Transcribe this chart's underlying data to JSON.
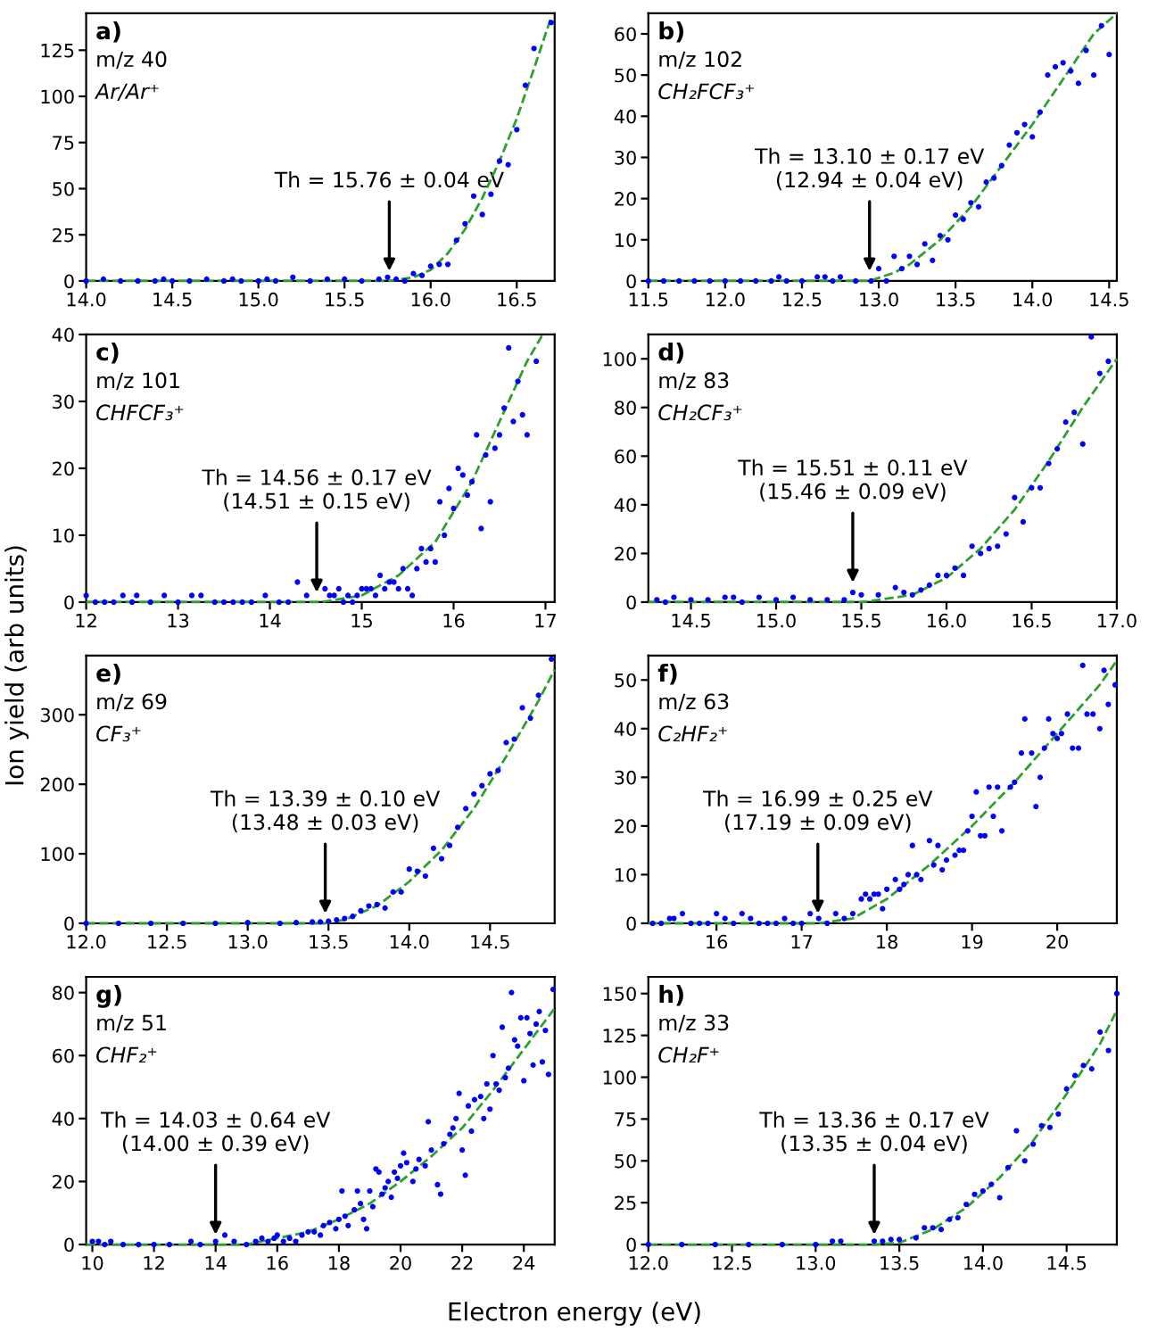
{
  "chart_data": [
    {
      "type": "scatter",
      "annotations": [
        "a)",
        "m/z 40",
        "Ar/Ar⁺",
        {
          "text": "Th = 15.76 ± 0.04 eV",
          "x": 15.76,
          "y": 0
        }
      ],
      "xlim": [
        14.0,
        16.72
      ],
      "xticks": [
        {
          "value": 14,
          "label": "14.0"
        },
        14.5,
        {
          "value": 15,
          "label": "15.0"
        },
        15.5,
        {
          "value": 16,
          "label": "16.0"
        },
        16.5
      ],
      "ylim": [
        0,
        145
      ],
      "yticks": [
        0,
        25,
        50,
        75,
        100,
        125
      ],
      "series": [
        {
          "type": "scatter",
          "color": "#0000ff",
          "marker": "circle",
          "x": [
            14.0,
            14.1,
            14.2,
            14.3,
            14.4,
            14.45,
            14.5,
            14.6,
            14.7,
            14.8,
            14.85,
            14.9,
            15.0,
            15.05,
            15.1,
            15.2,
            15.3,
            15.4,
            15.5,
            15.6,
            15.7,
            15.75,
            15.8,
            15.85,
            15.9,
            15.95,
            16.0,
            16.05,
            16.1,
            16.15,
            16.2,
            16.25,
            16.3,
            16.35,
            16.4,
            16.45,
            16.5,
            16.55,
            16.6,
            16.7
          ],
          "values": [
            0,
            1,
            0,
            0,
            0,
            1,
            0,
            0,
            1,
            0,
            1,
            0,
            0,
            1,
            0,
            2,
            0,
            1,
            1,
            0,
            1,
            2,
            1,
            0,
            4,
            3,
            8,
            9,
            9,
            22,
            31,
            46,
            36,
            47,
            65,
            63,
            82,
            106,
            126,
            140
          ]
        },
        {
          "type": "line",
          "color": "#2ca02c",
          "line_style": "dashed",
          "x": [
            14.0,
            15.76,
            15.9,
            16.0,
            16.1,
            16.2,
            16.3,
            16.4,
            16.5,
            16.6,
            16.7
          ],
          "values": [
            0,
            0,
            2,
            6,
            15,
            28,
            45,
            65,
            88,
            115,
            143
          ]
        }
      ]
    },
    {
      "type": "scatter",
      "annotations": [
        "b)",
        "m/z 102",
        "CH₂FCF₃⁺",
        {
          "text": "Th = 13.10 ± 0.17 eV\n(12.94 ± 0.04 eV)",
          "x": 12.94,
          "y": 0
        }
      ],
      "xlim": [
        11.5,
        14.55
      ],
      "xticks": [
        11.5,
        {
          "value": 12,
          "label": "12.0"
        },
        12.5,
        {
          "value": 13,
          "label": "13.0"
        },
        13.5,
        {
          "value": 14,
          "label": "14.0"
        },
        14.5
      ],
      "ylim": [
        0,
        65
      ],
      "yticks": [
        0,
        10,
        20,
        30,
        40,
        50,
        60
      ],
      "series": [
        {
          "type": "scatter",
          "color": "#0000ff",
          "marker": "circle",
          "x": [
            11.5,
            11.6,
            11.7,
            11.8,
            11.9,
            12.0,
            12.1,
            12.2,
            12.3,
            12.35,
            12.4,
            12.5,
            12.6,
            12.65,
            12.7,
            12.75,
            12.85,
            12.95,
            13.0,
            13.05,
            13.1,
            13.15,
            13.2,
            13.25,
            13.3,
            13.35,
            13.4,
            13.45,
            13.5,
            13.55,
            13.6,
            13.65,
            13.7,
            13.75,
            13.8,
            13.85,
            13.9,
            13.95,
            14.0,
            14.05,
            14.1,
            14.15,
            14.2,
            14.25,
            14.3,
            14.35,
            14.4,
            14.45,
            14.5
          ],
          "values": [
            0,
            0,
            0,
            0,
            0,
            0,
            0,
            0,
            0,
            1,
            0,
            0,
            1,
            1,
            0,
            1,
            0,
            0,
            3,
            0,
            6,
            3,
            6,
            4,
            9,
            5,
            11,
            10,
            16,
            15,
            19,
            18,
            24,
            25,
            28,
            33,
            36,
            38,
            35,
            41,
            50,
            52,
            53,
            51,
            48,
            56,
            50,
            62,
            55
          ]
        },
        {
          "type": "line",
          "color": "#2ca02c",
          "line_style": "dashed",
          "x": [
            11.5,
            12.94,
            13.1,
            13.2,
            13.4,
            13.6,
            13.8,
            14.0,
            14.2,
            14.4,
            14.55
          ],
          "values": [
            0,
            0,
            2,
            4,
            10,
            18,
            28,
            38,
            49,
            60,
            65
          ]
        }
      ]
    },
    {
      "type": "scatter",
      "annotations": [
        "c)",
        "m/z 101",
        "CHFCF₃⁺",
        {
          "text": "Th = 14.56 ± 0.17 eV\n(14.51 ± 0.15 eV)",
          "x": 14.51,
          "y": 0
        }
      ],
      "xlim": [
        12,
        17.1
      ],
      "xticks": [
        12,
        13,
        14,
        15,
        16,
        17
      ],
      "ylim": [
        0,
        40
      ],
      "yticks": [
        0,
        10,
        20,
        30,
        40
      ],
      "series": [
        {
          "type": "scatter",
          "color": "#0000ff",
          "marker": "circle",
          "x": [
            12.0,
            12.1,
            12.2,
            12.3,
            12.4,
            12.5,
            12.55,
            12.7,
            12.85,
            13.0,
            13.15,
            13.25,
            13.4,
            13.5,
            13.6,
            13.7,
            13.8,
            13.95,
            14.1,
            14.2,
            14.3,
            14.4,
            14.6,
            14.65,
            14.7,
            14.75,
            14.8,
            14.85,
            14.9,
            14.95,
            15.0,
            15.05,
            15.1,
            15.15,
            15.2,
            15.25,
            15.3,
            15.35,
            15.4,
            15.45,
            15.5,
            15.55,
            15.6,
            15.65,
            15.7,
            15.75,
            15.8,
            15.85,
            15.9,
            15.95,
            16.0,
            16.05,
            16.1,
            16.15,
            16.2,
            16.25,
            16.3,
            16.35,
            16.4,
            16.45,
            16.5,
            16.55,
            16.6,
            16.65,
            16.7,
            16.75,
            16.8,
            16.9
          ],
          "values": [
            1,
            0,
            0,
            0,
            1,
            0,
            1,
            0,
            1,
            0,
            1,
            1,
            0,
            0,
            0,
            0,
            0,
            1,
            0,
            0,
            3,
            1,
            2,
            1,
            1,
            2,
            0,
            1,
            0,
            1,
            2,
            2,
            2,
            1,
            4,
            2,
            3,
            3,
            2,
            5,
            2,
            1,
            5,
            8,
            6,
            8,
            6,
            15,
            10,
            17,
            14,
            20,
            19,
            16,
            18,
            25,
            11,
            22,
            15,
            23,
            25,
            29,
            38,
            27,
            33,
            28,
            25,
            36
          ]
        },
        {
          "type": "line",
          "color": "#2ca02c",
          "line_style": "dashed",
          "x": [
            12,
            14.56,
            15.0,
            15.4,
            15.8,
            16.2,
            16.5,
            16.8,
            16.97
          ],
          "values": [
            0,
            0,
            1,
            4,
            9,
            18,
            27,
            36,
            40
          ]
        }
      ]
    },
    {
      "type": "scatter",
      "annotations": [
        "d)",
        "m/z 83",
        "CH₂CF₃⁺",
        {
          "text": "Th = 15.51 ± 0.11 eV\n(15.46 ± 0.09 eV)",
          "x": 15.45,
          "y": 4
        }
      ],
      "xlim": [
        14.25,
        17.0
      ],
      "xticks": [
        14.5,
        {
          "value": 15,
          "label": "15.0"
        },
        15.5,
        {
          "value": 16,
          "label": "16.0"
        },
        16.5,
        {
          "value": 17,
          "label": "17.0"
        }
      ],
      "ylim": [
        0,
        110
      ],
      "yticks": [
        0,
        20,
        40,
        60,
        80,
        100
      ],
      "series": [
        {
          "type": "scatter",
          "color": "#0000ff",
          "marker": "circle",
          "x": [
            14.3,
            14.35,
            14.4,
            14.5,
            14.6,
            14.7,
            14.75,
            14.8,
            14.9,
            15.0,
            15.1,
            15.2,
            15.3,
            15.4,
            15.45,
            15.5,
            15.6,
            15.7,
            15.75,
            15.8,
            15.85,
            15.9,
            15.95,
            16.0,
            16.05,
            16.1,
            16.15,
            16.2,
            16.25,
            16.3,
            16.35,
            16.4,
            16.45,
            16.5,
            16.55,
            16.6,
            16.65,
            16.7,
            16.75,
            16.8,
            16.85,
            16.9,
            16.95
          ],
          "values": [
            1,
            0,
            2,
            1,
            1,
            2,
            2,
            0,
            2,
            1,
            2,
            1,
            1,
            1,
            4,
            3,
            3,
            6,
            4,
            3,
            5,
            7,
            11,
            11,
            14,
            11,
            23,
            20,
            22,
            23,
            28,
            43,
            33,
            47,
            47,
            57,
            63,
            74,
            78,
            65,
            109,
            94,
            99
          ]
        },
        {
          "type": "line",
          "color": "#2ca02c",
          "line_style": "dashed",
          "x": [
            14.25,
            15.51,
            15.8,
            16.0,
            16.2,
            16.4,
            16.6,
            16.8,
            17.0
          ],
          "values": [
            0,
            0,
            3,
            10,
            22,
            38,
            58,
            80,
            100
          ]
        }
      ]
    },
    {
      "type": "scatter",
      "annotations": [
        "e)",
        "m/z 69",
        "CF₃⁺",
        {
          "text": "Th = 13.39 ± 0.10 eV\n(13.48 ± 0.03 eV)",
          "x": 13.48,
          "y": 0
        }
      ],
      "xlim": [
        12.0,
        14.9
      ],
      "xticks": [
        {
          "value": 12,
          "label": "12.0"
        },
        12.5,
        {
          "value": 13,
          "label": "13.0"
        },
        13.5,
        {
          "value": 14,
          "label": "14.0"
        },
        14.5
      ],
      "ylim": [
        0,
        385
      ],
      "yticks": [
        0,
        100,
        200,
        300
      ],
      "series": [
        {
          "type": "scatter",
          "color": "#0000ff",
          "marker": "circle",
          "x": [
            12.0,
            12.2,
            12.4,
            12.6,
            12.8,
            13.0,
            13.2,
            13.3,
            13.4,
            13.45,
            13.5,
            13.55,
            13.6,
            13.65,
            13.7,
            13.75,
            13.8,
            13.85,
            13.9,
            13.95,
            14.0,
            14.05,
            14.1,
            14.15,
            14.2,
            14.25,
            14.3,
            14.35,
            14.4,
            14.45,
            14.5,
            14.55,
            14.6,
            14.65,
            14.7,
            14.75,
            14.8,
            14.88
          ],
          "values": [
            0,
            0,
            0,
            0,
            0,
            1,
            0,
            1,
            2,
            2,
            3,
            5,
            7,
            10,
            18,
            25,
            27,
            22,
            45,
            45,
            78,
            75,
            68,
            108,
            93,
            112,
            138,
            165,
            186,
            198,
            215,
            220,
            260,
            265,
            310,
            295,
            328,
            380
          ]
        },
        {
          "type": "line",
          "color": "#2ca02c",
          "line_style": "dashed",
          "x": [
            12.0,
            13.48,
            13.6,
            13.8,
            14.0,
            14.2,
            14.4,
            14.6,
            14.8,
            14.9
          ],
          "values": [
            0,
            0,
            5,
            25,
            60,
            105,
            165,
            240,
            320,
            365
          ]
        }
      ]
    },
    {
      "type": "scatter",
      "annotations": [
        "f)",
        "m/z 63",
        "C₂HF₂⁺",
        {
          "text": "Th = 16.99 ± 0.25 eV\n(17.19 ± 0.09 eV)",
          "x": 17.19,
          "y": 0
        }
      ],
      "xlim": [
        15.2,
        20.7
      ],
      "xticks": [
        16,
        17,
        18,
        19,
        20
      ],
      "ylim": [
        0,
        55
      ],
      "yticks": [
        0,
        10,
        20,
        30,
        40,
        50
      ],
      "series": [
        {
          "type": "scatter",
          "color": "#0000ff",
          "marker": "circle",
          "x": [
            15.25,
            15.35,
            15.45,
            15.5,
            15.6,
            15.7,
            15.8,
            15.9,
            16.0,
            16.1,
            16.2,
            16.3,
            16.4,
            16.5,
            16.6,
            16.7,
            16.8,
            16.9,
            17.0,
            17.1,
            17.2,
            17.3,
            17.4,
            17.5,
            17.6,
            17.7,
            17.75,
            17.8,
            17.85,
            17.9,
            17.95,
            18.0,
            18.1,
            18.15,
            18.2,
            18.25,
            18.3,
            18.35,
            18.4,
            18.5,
            18.55,
            18.6,
            18.65,
            18.7,
            18.8,
            18.85,
            18.9,
            18.95,
            19.0,
            19.05,
            19.1,
            19.15,
            19.2,
            19.25,
            19.3,
            19.35,
            19.45,
            19.5,
            19.58,
            19.62,
            19.7,
            19.75,
            19.8,
            19.85,
            19.9,
            19.95,
            20.0,
            20.05,
            20.12,
            20.18,
            20.25,
            20.3,
            20.35,
            20.42,
            20.5,
            20.55,
            20.6,
            20.68
          ],
          "values": [
            0,
            0,
            1,
            1,
            2,
            0,
            0,
            0,
            2,
            1,
            0,
            2,
            1,
            0,
            0,
            0,
            1,
            0,
            0,
            2,
            1,
            0,
            2,
            1,
            2,
            5,
            6,
            5,
            6,
            6,
            3,
            7,
            9,
            7,
            8,
            10,
            16,
            10,
            9,
            17,
            12,
            16,
            11,
            13,
            14,
            15,
            15,
            19,
            22,
            27,
            18,
            18,
            28,
            22,
            28,
            19,
            28,
            29,
            35,
            42,
            35,
            24,
            30,
            36,
            42,
            39,
            38,
            39,
            43,
            36,
            36,
            53,
            43,
            43,
            40,
            52,
            45,
            49
          ]
        },
        {
          "type": "line",
          "color": "#2ca02c",
          "line_style": "dashed",
          "x": [
            15.2,
            17.19,
            17.6,
            18.0,
            18.5,
            19.0,
            19.5,
            20.0,
            20.5,
            20.7
          ],
          "values": [
            0,
            0,
            1,
            5,
            12,
            20,
            29,
            39,
            49,
            54
          ]
        }
      ]
    },
    {
      "type": "scatter",
      "xlabel": "Electron energy (eV)",
      "annotations": [
        "g)",
        "m/z 51",
        "CHF₂⁺",
        {
          "text": "Th = 14.03 ± 0.64 eV\n(14.00 ± 0.39 eV)",
          "x": 14.0,
          "y": 0
        }
      ],
      "xlim": [
        9.8,
        25
      ],
      "xticks": [
        10,
        12,
        14,
        16,
        18,
        20,
        22,
        24
      ],
      "ylim": [
        0,
        85
      ],
      "yticks": [
        0,
        20,
        40,
        60,
        80
      ],
      "series": [
        {
          "type": "scatter",
          "color": "#0000ff",
          "marker": "circle",
          "x": [
            10.0,
            10.2,
            10.4,
            10.6,
            11.0,
            11.5,
            12.0,
            12.5,
            13.2,
            13.5,
            14.0,
            14.3,
            14.6,
            15.0,
            15.3,
            15.5,
            15.7,
            15.9,
            16.0,
            16.2,
            16.4,
            16.6,
            16.8,
            17.0,
            17.2,
            17.4,
            17.5,
            17.7,
            17.9,
            18.0,
            18.1,
            18.2,
            18.3,
            18.5,
            18.6,
            18.7,
            18.8,
            18.9,
            19.0,
            19.1,
            19.2,
            19.3,
            19.4,
            19.5,
            19.6,
            19.7,
            19.8,
            19.9,
            20.0,
            20.1,
            20.2,
            20.4,
            20.5,
            20.6,
            20.8,
            20.9,
            21.0,
            21.2,
            21.3,
            21.4,
            21.6,
            21.7,
            21.8,
            21.9,
            22.0,
            22.1,
            22.2,
            22.3,
            22.4,
            22.6,
            22.7,
            22.8,
            22.9,
            23.0,
            23.1,
            23.2,
            23.3,
            23.4,
            23.5,
            23.6,
            23.7,
            23.8,
            23.9,
            24.0,
            24.1,
            24.2,
            24.3,
            24.4,
            24.5,
            24.6,
            24.7,
            24.8,
            24.95
          ],
          "values": [
            1,
            1,
            0,
            1,
            0,
            0,
            0,
            0,
            1,
            0,
            1,
            3,
            1,
            0,
            1,
            2,
            1,
            2,
            3,
            1,
            2,
            1,
            3,
            4,
            4,
            3,
            6,
            7,
            5,
            8,
            17,
            9,
            6,
            11,
            17,
            13,
            8,
            5,
            17,
            12,
            24,
            23,
            16,
            18,
            20,
            15,
            23,
            21,
            25,
            29,
            26,
            20,
            24,
            27,
            25,
            39,
            30,
            19,
            16,
            32,
            35,
            37,
            40,
            48,
            30,
            22,
            44,
            36,
            46,
            47,
            40,
            51,
            43,
            60,
            51,
            49,
            69,
            53,
            56,
            80,
            65,
            63,
            72,
            52,
            72,
            67,
            57,
            70,
            74,
            58,
            68,
            54,
            81
          ]
        },
        {
          "type": "line",
          "color": "#2ca02c",
          "line_style": "dashed",
          "x": [
            9.8,
            14.0,
            15.0,
            16.0,
            17.0,
            18.0,
            19.0,
            20.0,
            21.0,
            22.0,
            23.0,
            24.0,
            25.0
          ],
          "values": [
            0,
            0,
            0,
            2,
            4,
            8,
            13,
            20,
            28,
            37,
            49,
            62,
            75
          ]
        }
      ]
    },
    {
      "type": "scatter",
      "ylabel": "Ion yield (arb units)",
      "annotations": [
        "h)",
        "m/z 33",
        "CH₂F⁺",
        {
          "text": "Th = 13.36 ± 0.17 eV\n(13.35 ± 0.04 eV)",
          "x": 13.35,
          "y": 0
        }
      ],
      "xlim": [
        12.0,
        14.8
      ],
      "xticks": [
        {
          "value": 12,
          "label": "12.0"
        },
        12.5,
        {
          "value": 13,
          "label": "13.0"
        },
        13.5,
        {
          "value": 14,
          "label": "14.0"
        },
        14.5
      ],
      "ylim": [
        0,
        160
      ],
      "yticks": [
        0,
        25,
        50,
        75,
        100,
        125,
        150
      ],
      "series": [
        {
          "type": "scatter",
          "color": "#0000ff",
          "marker": "circle",
          "x": [
            12.0,
            12.2,
            12.4,
            12.6,
            12.8,
            13.0,
            13.1,
            13.15,
            13.35,
            13.4,
            13.45,
            13.5,
            13.6,
            13.65,
            13.7,
            13.75,
            13.8,
            13.85,
            13.9,
            13.95,
            14.0,
            14.05,
            14.1,
            14.15,
            14.2,
            14.25,
            14.3,
            14.35,
            14.4,
            14.45,
            14.5,
            14.55,
            14.6,
            14.65,
            14.7,
            14.75,
            14.8
          ],
          "values": [
            0,
            0,
            0,
            0,
            0,
            0,
            2,
            2,
            2,
            2,
            3,
            3,
            4,
            10,
            10,
            9,
            15,
            16,
            24,
            30,
            32,
            36,
            28,
            46,
            68,
            50,
            60,
            71,
            70,
            78,
            93,
            101,
            107,
            105,
            127,
            116,
            150
          ]
        },
        {
          "type": "line",
          "color": "#2ca02c",
          "line_style": "dashed",
          "x": [
            12.0,
            13.35,
            13.5,
            13.7,
            13.9,
            14.1,
            14.3,
            14.5,
            14.7,
            14.8
          ],
          "values": [
            0,
            0,
            1,
            9,
            22,
            40,
            62,
            90,
            120,
            140
          ]
        }
      ]
    }
  ]
}
